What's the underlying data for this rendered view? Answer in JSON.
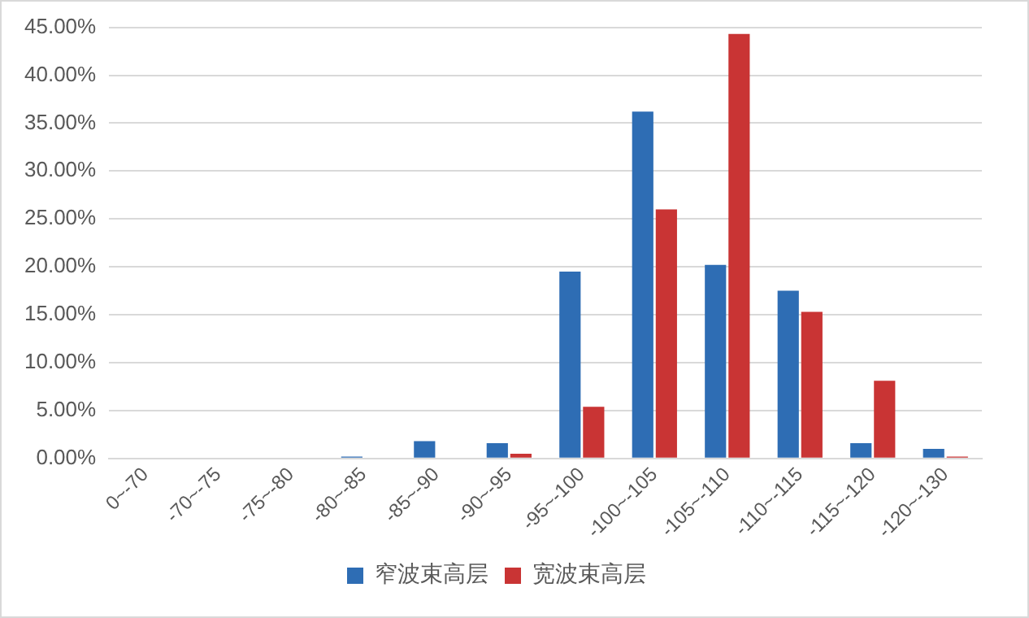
{
  "chart_data": {
    "type": "bar",
    "categories": [
      "0~-70",
      "-70~-75",
      "-75~-80",
      "-80~-85",
      "-85~-90",
      "-90~-95",
      "-95~-100",
      "-100~-105",
      "-105~-110",
      "-110~-115",
      "-115~-120",
      "-120~-130"
    ],
    "series": [
      {
        "name": "窄波束高层",
        "color": "#2e6db4",
        "values": [
          0,
          0,
          0,
          0.2,
          1.8,
          1.6,
          19.5,
          36.2,
          20.2,
          17.5,
          1.6,
          1.0
        ]
      },
      {
        "name": "宽波束高层",
        "color": "#c93434",
        "values": [
          0,
          0,
          0,
          0,
          0,
          0.5,
          5.4,
          26.0,
          44.3,
          15.3,
          8.1,
          0.2
        ]
      }
    ],
    "ylim": [
      0,
      45
    ],
    "yticks": [
      {
        "value": 0,
        "label": "0.00%"
      },
      {
        "value": 5,
        "label": "5.00%"
      },
      {
        "value": 10,
        "label": "10.00%"
      },
      {
        "value": 15,
        "label": "15.00%"
      },
      {
        "value": 20,
        "label": "20.00%"
      },
      {
        "value": 25,
        "label": "25.00%"
      },
      {
        "value": 30,
        "label": "30.00%"
      },
      {
        "value": 35,
        "label": "35.00%"
      },
      {
        "value": 40,
        "label": "40.00%"
      },
      {
        "value": 45,
        "label": "45.00%"
      }
    ],
    "grid": "y",
    "legend": "bottom"
  }
}
